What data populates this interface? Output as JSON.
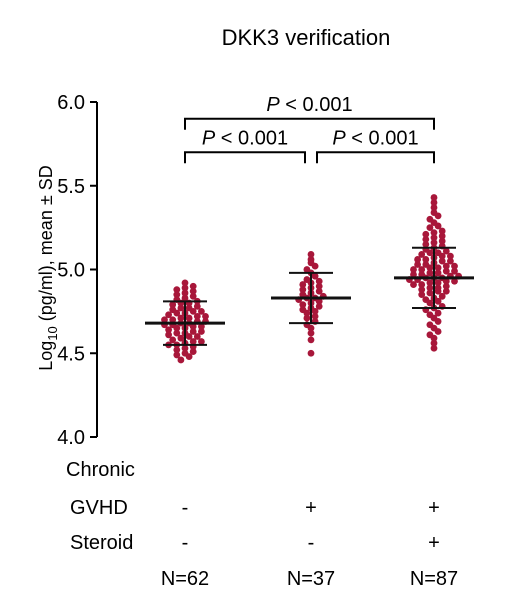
{
  "chart_data": {
    "type": "scatter",
    "title": "DKK3 verification",
    "ylabel_main": "Log",
    "ylabel_sub": "10",
    "ylabel_rest": " (pg/ml), mean ± SD",
    "ylim": [
      4.0,
      6.0
    ],
    "yticks": [
      "4.0",
      "4.5",
      "5.0",
      "5.5",
      "6.0"
    ],
    "grid": false,
    "point_color": "#a8173a",
    "groups": [
      {
        "chronic_gvhd": "-",
        "steroid": "-",
        "n_label": "N=62",
        "n": 62,
        "mean": 4.68,
        "sd": 0.13,
        "values": [
          4.46,
          4.48,
          4.49,
          4.5,
          4.51,
          4.52,
          4.53,
          4.54,
          4.55,
          4.55,
          4.56,
          4.57,
          4.57,
          4.58,
          4.59,
          4.6,
          4.6,
          4.61,
          4.62,
          4.62,
          4.63,
          4.63,
          4.64,
          4.65,
          4.65,
          4.66,
          4.66,
          4.67,
          4.67,
          4.68,
          4.68,
          4.69,
          4.69,
          4.7,
          4.7,
          4.71,
          4.71,
          4.72,
          4.72,
          4.73,
          4.74,
          4.74,
          4.75,
          4.75,
          4.76,
          4.77,
          4.77,
          4.78,
          4.79,
          4.8,
          4.8,
          4.81,
          4.82,
          4.83,
          4.84,
          4.85,
          4.86,
          4.87,
          4.88,
          4.89,
          4.9,
          4.92
        ]
      },
      {
        "chronic_gvhd": "+",
        "steroid": "-",
        "n_label": "N=37",
        "n": 37,
        "mean": 4.83,
        "sd": 0.15,
        "values": [
          4.5,
          4.58,
          4.62,
          4.65,
          4.67,
          4.69,
          4.71,
          4.72,
          4.74,
          4.75,
          4.76,
          4.77,
          4.78,
          4.79,
          4.8,
          4.81,
          4.82,
          4.83,
          4.83,
          4.84,
          4.85,
          4.86,
          4.87,
          4.88,
          4.89,
          4.9,
          4.91,
          4.92,
          4.93,
          4.94,
          4.96,
          4.98,
          5.0,
          5.02,
          5.04,
          5.06,
          5.09
        ]
      },
      {
        "chronic_gvhd": "+",
        "steroid": "+",
        "n_label": "N=87",
        "n": 87,
        "mean": 4.95,
        "sd": 0.18,
        "values": [
          4.53,
          4.56,
          4.59,
          4.61,
          4.63,
          4.65,
          4.67,
          4.69,
          4.71,
          4.73,
          4.74,
          4.76,
          4.77,
          4.78,
          4.8,
          4.81,
          4.82,
          4.83,
          4.84,
          4.85,
          4.86,
          4.87,
          4.87,
          4.88,
          4.89,
          4.89,
          4.9,
          4.91,
          4.91,
          4.92,
          4.92,
          4.93,
          4.93,
          4.94,
          4.94,
          4.95,
          4.95,
          4.95,
          4.96,
          4.96,
          4.97,
          4.97,
          4.98,
          4.98,
          4.99,
          4.99,
          5.0,
          5.0,
          5.01,
          5.01,
          5.02,
          5.02,
          5.03,
          5.03,
          5.04,
          5.05,
          5.05,
          5.06,
          5.06,
          5.07,
          5.08,
          5.08,
          5.09,
          5.1,
          5.1,
          5.11,
          5.12,
          5.13,
          5.14,
          5.15,
          5.16,
          5.17,
          5.18,
          5.19,
          5.2,
          5.21,
          5.22,
          5.23,
          5.25,
          5.26,
          5.28,
          5.3,
          5.32,
          5.34,
          5.37,
          5.4,
          5.43
        ]
      }
    ],
    "comparisons": [
      {
        "from": 0,
        "to": 2,
        "label_p": "P",
        "label_rest": " < 0.001",
        "y": 5.9
      },
      {
        "from": 0,
        "to": 1,
        "label_p": "P",
        "label_rest": " < 0.001",
        "y": 5.7
      },
      {
        "from": 1,
        "to": 2,
        "label_p": "P",
        "label_rest": " < 0.001",
        "y": 5.7
      }
    ],
    "row_labels": {
      "chronic": "Chronic",
      "gvhd": "GVHD",
      "steroid": "Steroid"
    }
  }
}
